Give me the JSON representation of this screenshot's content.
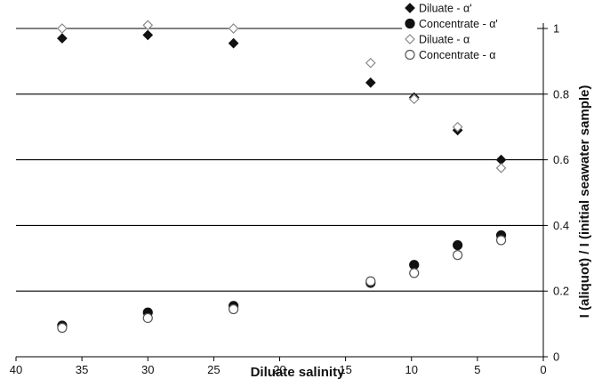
{
  "chart_data": {
    "type": "scatter",
    "xlabel": "Diluate salinity",
    "ylabel": "I (aliquot) / I (initial seawater sample)",
    "xlim": [
      40,
      0
    ],
    "x_reversed": true,
    "ylim": [
      0,
      1
    ],
    "x_ticks": [
      "40",
      "35",
      "30",
      "25",
      "20",
      "15",
      "10",
      "5",
      "0"
    ],
    "y_ticks": [
      "0",
      "0.2",
      "0.4",
      "0.6",
      "0.8",
      "1"
    ],
    "y_axis_side": "right",
    "grid": "horizontal",
    "legend_position": "top-right",
    "series": [
      {
        "name": "Diluate - α'",
        "marker": "filled-diamond",
        "color": "#111111",
        "x": [
          36.5,
          30.0,
          23.5,
          13.1,
          9.8,
          6.5,
          3.2
        ],
        "y": [
          0.97,
          0.98,
          0.955,
          0.835,
          0.79,
          0.69,
          0.6
        ]
      },
      {
        "name": "Concentrate - α'",
        "marker": "filled-circle",
        "color": "#111111",
        "x": [
          36.5,
          30.0,
          23.5,
          13.1,
          9.8,
          6.5,
          3.2
        ],
        "y": [
          0.095,
          0.135,
          0.155,
          0.225,
          0.28,
          0.34,
          0.37
        ]
      },
      {
        "name": "Diluate - α",
        "marker": "open-diamond",
        "color": "#888888",
        "x": [
          36.5,
          30.0,
          23.5,
          13.1,
          9.8,
          6.5,
          3.2
        ],
        "y": [
          1.0,
          1.01,
          1.0,
          0.895,
          0.785,
          0.7,
          0.575
        ]
      },
      {
        "name": "Concentrate - α",
        "marker": "open-circle",
        "color": "#555555",
        "x": [
          36.5,
          30.0,
          23.5,
          13.1,
          9.8,
          6.5,
          3.2
        ],
        "y": [
          0.088,
          0.118,
          0.145,
          0.23,
          0.255,
          0.31,
          0.355
        ]
      }
    ]
  }
}
